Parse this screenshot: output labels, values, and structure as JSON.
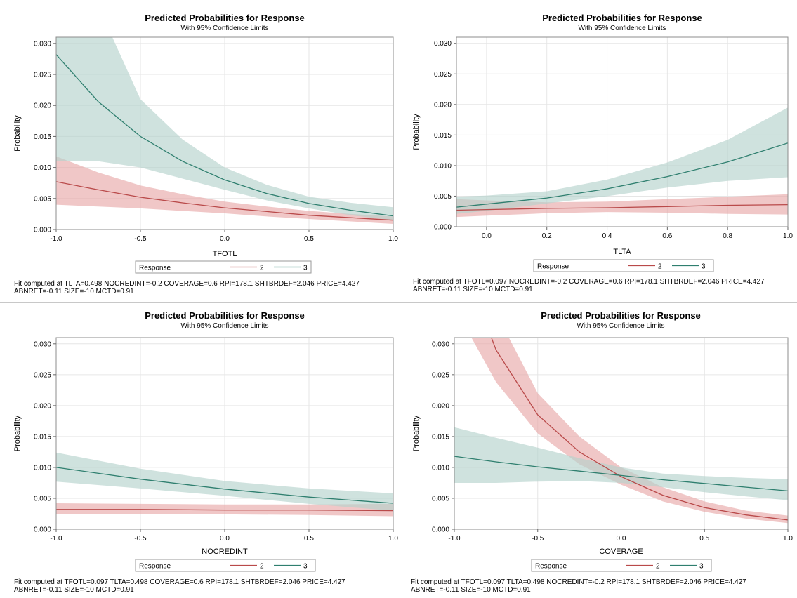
{
  "chart_data": [
    {
      "type": "line",
      "title": "Predicted Probabilities for Response",
      "subtitle": "With 95% Confidence Limits",
      "xlabel": "TFOTL",
      "ylabel": "Probability",
      "xlim": [
        -1.0,
        1.0
      ],
      "ylim": [
        0,
        0.031
      ],
      "xticks": [
        "-1.0",
        "-0.5",
        "0.0",
        "0.5",
        "1.0"
      ],
      "xtick_values": [
        -1.0,
        -0.5,
        0.0,
        0.5,
        1.0
      ],
      "yticks": [
        "0.000",
        "0.005",
        "0.010",
        "0.015",
        "0.020",
        "0.025",
        "0.030"
      ],
      "ytick_values": [
        0,
        0.005,
        0.01,
        0.015,
        0.02,
        0.025,
        0.03
      ],
      "grid": true,
      "legend": {
        "title": "Response",
        "placement": "bottom",
        "entries": [
          "2",
          "3"
        ]
      },
      "x": [
        -1.0,
        -0.75,
        -0.5,
        -0.25,
        0.0,
        0.25,
        0.5,
        0.75,
        1.0
      ],
      "series": [
        {
          "name": "2",
          "color": "#b94a4a",
          "band_color": "#e8a9a9",
          "values": [
            0.0077,
            0.0064,
            0.0052,
            0.0043,
            0.0035,
            0.0029,
            0.0023,
            0.0019,
            0.0015
          ],
          "lower": [
            0.004,
            0.0037,
            0.0034,
            0.003,
            0.0026,
            0.0021,
            0.0017,
            0.0013,
            0.0009
          ],
          "upper": [
            0.0118,
            0.0092,
            0.0071,
            0.0057,
            0.0045,
            0.0037,
            0.003,
            0.0025,
            0.0021
          ]
        },
        {
          "name": "3",
          "color": "#2f7f6f",
          "band_color": "#b5d3cd",
          "values": [
            0.0282,
            0.0206,
            0.015,
            0.011,
            0.008,
            0.0058,
            0.0042,
            0.0031,
            0.0022
          ],
          "lower": [
            0.011,
            0.011,
            0.01,
            0.0082,
            0.0064,
            0.0047,
            0.0034,
            0.0023,
            0.0015
          ],
          "upper": [
            0.036,
            0.036,
            0.021,
            0.0145,
            0.01,
            0.0072,
            0.0053,
            0.0043,
            0.0036
          ]
        }
      ],
      "footnote": [
        "Fit computed at TLTA=0.498 NOCREDINT=-0.2 COVERAGE=0.6 RPI=178.1 SHTBRDEF=2.046 PRICE=4.427",
        "ABNRET=-0.11 SIZE=-10 MCTD=0.91"
      ]
    },
    {
      "type": "line",
      "title": "Predicted Probabilities for Response",
      "subtitle": "With 95% Confidence Limits",
      "xlabel": "TLTA",
      "ylabel": "Probability",
      "xlim": [
        -0.1,
        1.0
      ],
      "ylim": [
        0,
        0.031
      ],
      "xticks": [
        "0.0",
        "0.2",
        "0.4",
        "0.6",
        "0.8",
        "1.0"
      ],
      "xtick_values": [
        0.0,
        0.2,
        0.4,
        0.6,
        0.8,
        1.0
      ],
      "yticks": [
        "0.000",
        "0.005",
        "0.010",
        "0.015",
        "0.020",
        "0.025",
        "0.030"
      ],
      "ytick_values": [
        0,
        0.005,
        0.01,
        0.015,
        0.02,
        0.025,
        0.03
      ],
      "grid": true,
      "legend": {
        "title": "Response",
        "placement": "bottom",
        "entries": [
          "2",
          "3"
        ]
      },
      "x": [
        -0.1,
        0.0,
        0.2,
        0.4,
        0.6,
        0.8,
        1.0
      ],
      "series": [
        {
          "name": "2",
          "color": "#b94a4a",
          "band_color": "#e8a9a9",
          "values": [
            0.0027,
            0.0028,
            0.003,
            0.0031,
            0.0033,
            0.0035,
            0.0036
          ],
          "lower": [
            0.0016,
            0.0018,
            0.0022,
            0.0024,
            0.0023,
            0.0021,
            0.002
          ],
          "upper": [
            0.0045,
            0.0043,
            0.004,
            0.0041,
            0.0045,
            0.0049,
            0.0053
          ]
        },
        {
          "name": "3",
          "color": "#2f7f6f",
          "band_color": "#b5d3cd",
          "values": [
            0.0032,
            0.0037,
            0.0047,
            0.0062,
            0.0082,
            0.0106,
            0.0137
          ],
          "lower": [
            0.0021,
            0.0026,
            0.0038,
            0.005,
            0.0064,
            0.0075,
            0.0081
          ],
          "upper": [
            0.0049,
            0.0051,
            0.0058,
            0.0077,
            0.0105,
            0.0142,
            0.0195
          ]
        }
      ],
      "footnote": [
        "Fit computed at TFOTL=0.097 NOCREDINT=-0.2 COVERAGE=0.6 RPI=178.1 SHTBRDEF=2.046 PRICE=4.427",
        "ABNRET=-0.11 SIZE=-10 MCTD=0.91"
      ]
    },
    {
      "type": "line",
      "title": "Predicted Probabilities for Response",
      "subtitle": "With 95% Confidence Limits",
      "xlabel": "NOCREDINT",
      "ylabel": "Probability",
      "xlim": [
        -1.0,
        1.0
      ],
      "ylim": [
        0,
        0.031
      ],
      "xticks": [
        "-1.0",
        "-0.5",
        "0.0",
        "0.5",
        "1.0"
      ],
      "xtick_values": [
        -1.0,
        -0.5,
        0.0,
        0.5,
        1.0
      ],
      "yticks": [
        "0.000",
        "0.005",
        "0.010",
        "0.015",
        "0.020",
        "0.025",
        "0.030"
      ],
      "ytick_values": [
        0,
        0.005,
        0.01,
        0.015,
        0.02,
        0.025,
        0.03
      ],
      "grid": true,
      "legend": {
        "title": "Response",
        "placement": "bottom",
        "entries": [
          "2",
          "3"
        ]
      },
      "x": [
        -1.0,
        -0.5,
        0.0,
        0.5,
        1.0
      ],
      "series": [
        {
          "name": "2",
          "color": "#b94a4a",
          "band_color": "#e8a9a9",
          "values": [
            0.0032,
            0.0032,
            0.0031,
            0.0031,
            0.003
          ],
          "lower": [
            0.0024,
            0.0024,
            0.0024,
            0.0023,
            0.0021
          ],
          "upper": [
            0.0042,
            0.0041,
            0.004,
            0.004,
            0.0041
          ]
        },
        {
          "name": "3",
          "color": "#2f7f6f",
          "band_color": "#b5d3cd",
          "values": [
            0.01,
            0.0081,
            0.0065,
            0.0052,
            0.0042
          ],
          "lower": [
            0.0077,
            0.0066,
            0.0054,
            0.0041,
            0.003
          ],
          "upper": [
            0.0124,
            0.0098,
            0.0078,
            0.0066,
            0.0058
          ]
        }
      ],
      "footnote": [
        "Fit computed at TFOTL=0.097 TLTA=0.498 COVERAGE=0.6 RPI=178.1 SHTBRDEF=2.046 PRICE=4.427",
        "ABNRET=-0.11 SIZE=-10 MCTD=0.91"
      ]
    },
    {
      "type": "line",
      "title": "Predicted Probabilities for Response",
      "subtitle": "With 95% Confidence Limits",
      "xlabel": "COVERAGE",
      "ylabel": "Probability",
      "xlim": [
        -1.0,
        1.0
      ],
      "ylim": [
        0,
        0.031
      ],
      "xticks": [
        "-1.0",
        "-0.5",
        "0.0",
        "0.5",
        "1.0"
      ],
      "xtick_values": [
        -1.0,
        -0.5,
        0.0,
        0.5,
        1.0
      ],
      "yticks": [
        "0.000",
        "0.005",
        "0.010",
        "0.015",
        "0.020",
        "0.025",
        "0.030"
      ],
      "ytick_values": [
        0,
        0.005,
        0.01,
        0.015,
        0.02,
        0.025,
        0.03
      ],
      "grid": true,
      "legend": {
        "title": "Response",
        "placement": "bottom",
        "entries": [
          "2",
          "3"
        ]
      },
      "x": [
        -1.0,
        -0.75,
        -0.5,
        -0.25,
        0.0,
        0.25,
        0.5,
        0.75,
        1.0
      ],
      "series": [
        {
          "name": "2",
          "color": "#b94a4a",
          "band_color": "#e8a9a9",
          "values": [
            0.047,
            0.029,
            0.0185,
            0.0125,
            0.0085,
            0.0055,
            0.0035,
            0.0023,
            0.0015
          ],
          "lower": [
            0.036,
            0.0238,
            0.0155,
            0.0105,
            0.0072,
            0.0045,
            0.0028,
            0.0017,
            0.001
          ],
          "upper": [
            0.056,
            0.035,
            0.022,
            0.015,
            0.01,
            0.0068,
            0.0045,
            0.003,
            0.0022
          ]
        },
        {
          "name": "3",
          "color": "#2f7f6f",
          "band_color": "#b5d3cd",
          "values": [
            0.0118,
            0.0109,
            0.0101,
            0.0094,
            0.0087,
            0.008,
            0.0074,
            0.0068,
            0.0062
          ],
          "lower": [
            0.0075,
            0.0075,
            0.0077,
            0.0078,
            0.0075,
            0.0068,
            0.006,
            0.0053,
            0.0047
          ],
          "upper": [
            0.0165,
            0.0148,
            0.0132,
            0.0115,
            0.01,
            0.009,
            0.0086,
            0.0083,
            0.0081
          ]
        }
      ],
      "footnote": [
        "Fit computed at TFOTL=0.097 TLTA=0.498 NOCREDINT=-0.2 RPI=178.1 SHTBRDEF=2.046 PRICE=4.427",
        "ABNRET=-0.11 SIZE=-10 MCTD=0.91"
      ]
    }
  ]
}
